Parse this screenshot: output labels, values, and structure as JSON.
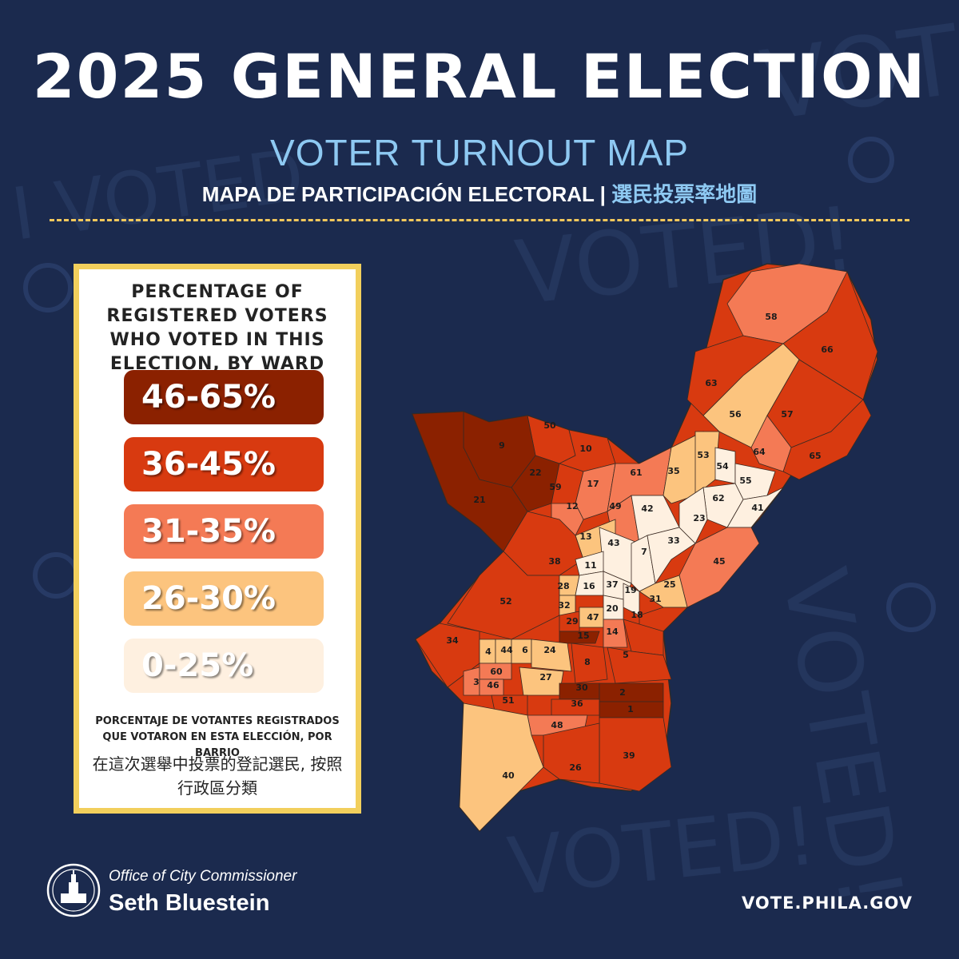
{
  "header": {
    "title": "2025 GENERAL ELECTION",
    "subtitle": "VOTER TURNOUT MAP",
    "subline_es": "MAPA DE PARTICIPACIÓN ELECTORAL",
    "subline_sep": " | ",
    "subline_zh": "選民投票率地圖"
  },
  "legend": {
    "heading": "PERCENTAGE OF REGISTERED VOTERS WHO VOTED IN THIS ELECTION, BY WARD",
    "bins": [
      {
        "label": "46-65%",
        "color": "#8b2100"
      },
      {
        "label": "36-45%",
        "color": "#d83a10"
      },
      {
        "label": "31-35%",
        "color": "#f47a55"
      },
      {
        "label": "26-30%",
        "color": "#fcc47e"
      },
      {
        "label": "0-25%",
        "color": "#fef0e0"
      }
    ],
    "heading_es": "PORCENTAJE DE VOTANTES REGISTRADOS QUE VOTARON EN ESTA ELECCIÓN, POR BARRIO",
    "heading_zh": "在這次選舉中投票的登記選民, 按照行政區分類"
  },
  "map": {
    "wards": [
      {
        "label": "58",
        "bin": 2
      },
      {
        "label": "66",
        "bin": 1
      },
      {
        "label": "63",
        "bin": 1
      },
      {
        "label": "56",
        "bin": 3
      },
      {
        "label": "57",
        "bin": 1
      },
      {
        "label": "65",
        "bin": 1
      },
      {
        "label": "64",
        "bin": 2
      },
      {
        "label": "50",
        "bin": 1
      },
      {
        "label": "9",
        "bin": 0
      },
      {
        "label": "22",
        "bin": 0
      },
      {
        "label": "10",
        "bin": 1
      },
      {
        "label": "21",
        "bin": 0
      },
      {
        "label": "59",
        "bin": 1
      },
      {
        "label": "17",
        "bin": 2
      },
      {
        "label": "12",
        "bin": 2
      },
      {
        "label": "61",
        "bin": 2
      },
      {
        "label": "49",
        "bin": 2
      },
      {
        "label": "35",
        "bin": 3
      },
      {
        "label": "53",
        "bin": 3
      },
      {
        "label": "54",
        "bin": 4
      },
      {
        "label": "55",
        "bin": 4
      },
      {
        "label": "62",
        "bin": 4
      },
      {
        "label": "41",
        "bin": 4
      },
      {
        "label": "42",
        "bin": 4
      },
      {
        "label": "23",
        "bin": 4
      },
      {
        "label": "13",
        "bin": 3
      },
      {
        "label": "43",
        "bin": 4
      },
      {
        "label": "7",
        "bin": 4
      },
      {
        "label": "33",
        "bin": 4
      },
      {
        "label": "38",
        "bin": 1
      },
      {
        "label": "11",
        "bin": 4
      },
      {
        "label": "45",
        "bin": 2
      },
      {
        "label": "52",
        "bin": 1
      },
      {
        "label": "28",
        "bin": 3
      },
      {
        "label": "16",
        "bin": 4
      },
      {
        "label": "37",
        "bin": 4
      },
      {
        "label": "19",
        "bin": 4
      },
      {
        "label": "25",
        "bin": 3
      },
      {
        "label": "32",
        "bin": 3
      },
      {
        "label": "20",
        "bin": 4
      },
      {
        "label": "31",
        "bin": 1
      },
      {
        "label": "29",
        "bin": 1
      },
      {
        "label": "47",
        "bin": 3
      },
      {
        "label": "18",
        "bin": 1
      },
      {
        "label": "15",
        "bin": 0
      },
      {
        "label": "14",
        "bin": 2
      },
      {
        "label": "34",
        "bin": 1
      },
      {
        "label": "4",
        "bin": 3
      },
      {
        "label": "44",
        "bin": 3
      },
      {
        "label": "6",
        "bin": 3
      },
      {
        "label": "24",
        "bin": 3
      },
      {
        "label": "8",
        "bin": 1
      },
      {
        "label": "5",
        "bin": 1
      },
      {
        "label": "60",
        "bin": 2
      },
      {
        "label": "3",
        "bin": 2
      },
      {
        "label": "46",
        "bin": 2
      },
      {
        "label": "27",
        "bin": 3
      },
      {
        "label": "30",
        "bin": 0
      },
      {
        "label": "2",
        "bin": 0
      },
      {
        "label": "51",
        "bin": 1
      },
      {
        "label": "36",
        "bin": 1
      },
      {
        "label": "1",
        "bin": 0
      },
      {
        "label": "48",
        "bin": 2
      },
      {
        "label": "39",
        "bin": 1
      },
      {
        "label": "26",
        "bin": 1
      },
      {
        "label": "40",
        "bin": 3
      }
    ]
  },
  "footer": {
    "office_label": "Office of City Commissioner",
    "office_name": "Seth Bluestein",
    "website": "VOTE.PHILA.GOV"
  }
}
